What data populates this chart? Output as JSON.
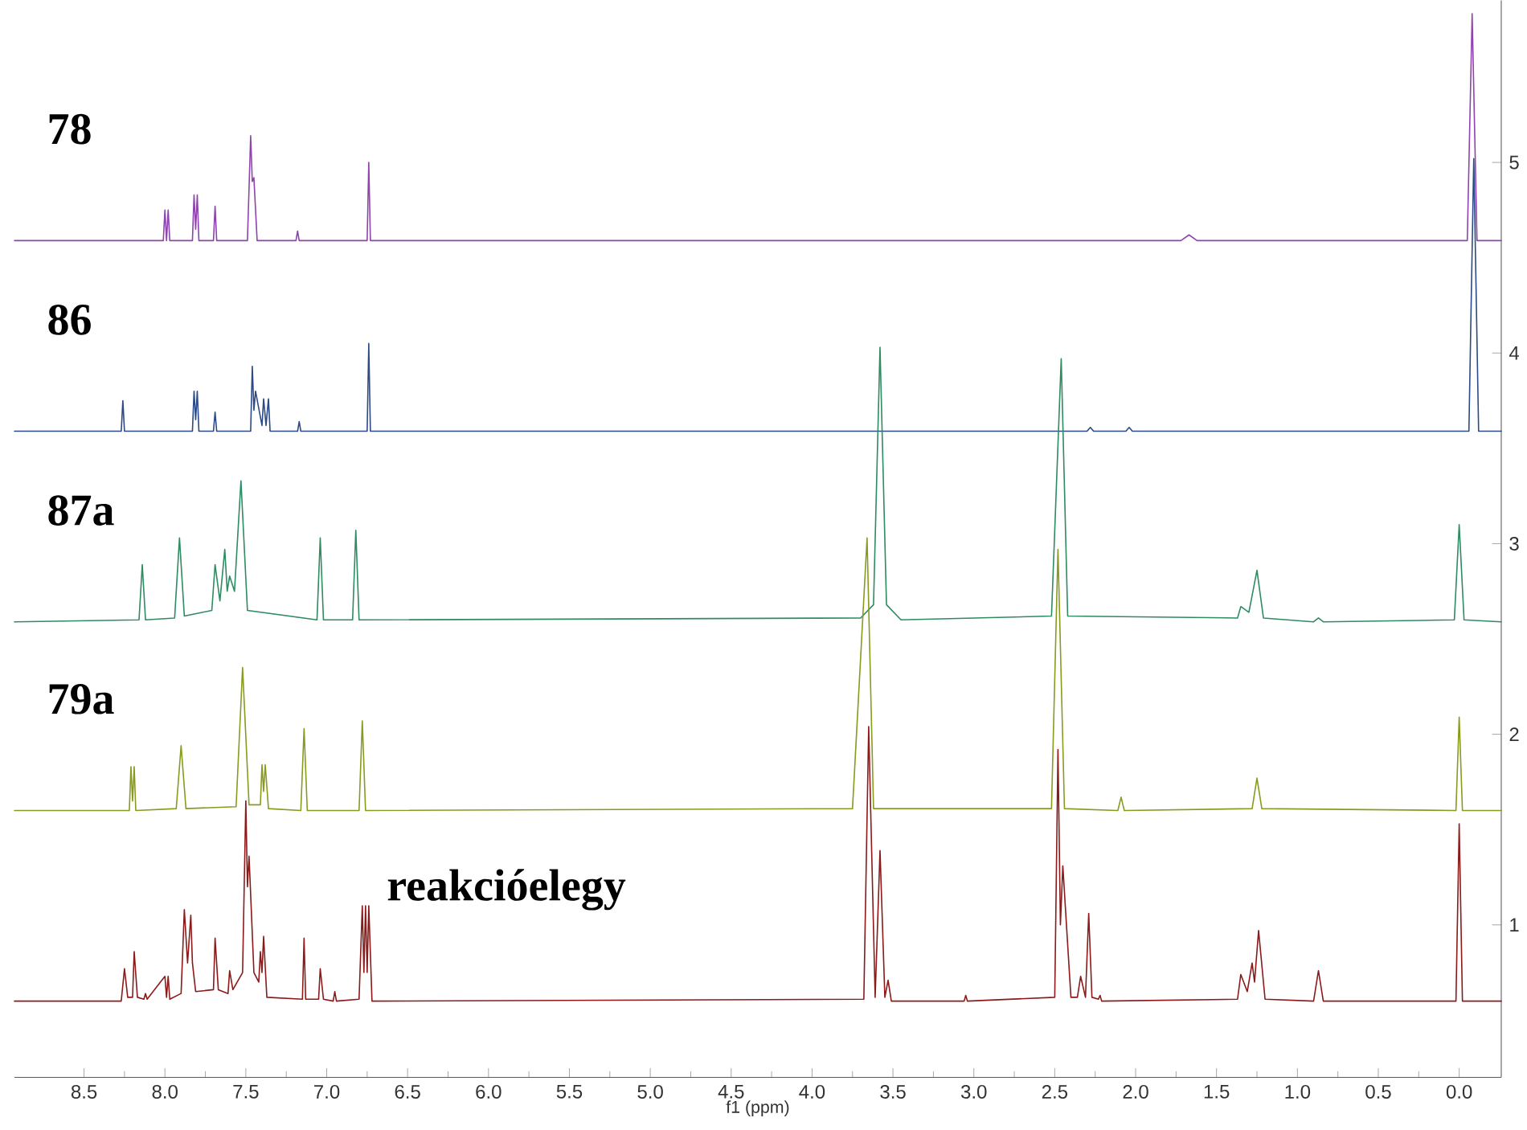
{
  "chart_data": {
    "type": "line",
    "xlabel": "f1 (ppm)",
    "xlim": [
      8.93,
      -0.26
    ],
    "ylim": [
      0.2,
      5.85
    ],
    "xticks": [
      {
        "value": 8.5,
        "label": "8.5"
      },
      {
        "value": 8.0,
        "label": "8.0"
      },
      {
        "value": 7.5,
        "label": "7.5"
      },
      {
        "value": 7.0,
        "label": "7.0"
      },
      {
        "value": 6.5,
        "label": "6.5"
      },
      {
        "value": 6.0,
        "label": "6.0"
      },
      {
        "value": 5.5,
        "label": "5.5"
      },
      {
        "value": 5.0,
        "label": "5.0"
      },
      {
        "value": 4.5,
        "label": "4.5"
      },
      {
        "value": 4.0,
        "label": "4.0"
      },
      {
        "value": 3.5,
        "label": "3.5"
      },
      {
        "value": 3.0,
        "label": "3.0"
      },
      {
        "value": 2.5,
        "label": "2.5"
      },
      {
        "value": 2.0,
        "label": "2.0"
      },
      {
        "value": 1.5,
        "label": "1.5"
      },
      {
        "value": 1.0,
        "label": "1.0"
      },
      {
        "value": 0.5,
        "label": "0.5"
      },
      {
        "value": 0.0,
        "label": "0.0"
      }
    ],
    "yticks": [
      1,
      2,
      3,
      4,
      5
    ],
    "marker": "none",
    "line_style": "solid",
    "series": [
      {
        "name": "78",
        "color": "#8e44ad",
        "x": [
          8.93,
          8.01,
          8.0,
          7.99,
          7.98,
          7.97,
          7.83,
          7.82,
          7.81,
          7.8,
          7.79,
          7.7,
          7.69,
          7.68,
          7.49,
          7.47,
          7.46,
          7.45,
          7.43,
          7.19,
          7.18,
          7.17,
          6.75,
          6.74,
          6.73,
          1.72,
          1.67,
          1.62,
          -0.05,
          -0.08,
          -0.11,
          -0.26
        ],
        "values": [
          4.59,
          4.59,
          4.75,
          4.59,
          4.75,
          4.59,
          4.59,
          4.83,
          4.65,
          4.83,
          4.59,
          4.59,
          4.77,
          4.59,
          4.59,
          5.14,
          4.9,
          4.92,
          4.59,
          4.59,
          4.64,
          4.59,
          4.59,
          5.0,
          4.59,
          4.59,
          4.62,
          4.59,
          4.59,
          5.78,
          4.59,
          4.59
        ]
      },
      {
        "name": "86",
        "color": "#2c4a86",
        "x": [
          8.93,
          8.27,
          8.26,
          8.25,
          7.83,
          7.82,
          7.81,
          7.8,
          7.79,
          7.7,
          7.69,
          7.68,
          7.47,
          7.46,
          7.45,
          7.44,
          7.4,
          7.39,
          7.375,
          7.36,
          7.35,
          7.18,
          7.17,
          7.16,
          6.75,
          6.74,
          6.73,
          2.3,
          2.28,
          2.26,
          2.06,
          2.04,
          2.02,
          -0.06,
          -0.09,
          -0.12,
          -0.26
        ],
        "values": [
          3.59,
          3.59,
          3.75,
          3.59,
          3.59,
          3.8,
          3.65,
          3.8,
          3.59,
          3.59,
          3.69,
          3.59,
          3.59,
          3.93,
          3.7,
          3.8,
          3.62,
          3.76,
          3.62,
          3.76,
          3.59,
          3.59,
          3.64,
          3.59,
          3.59,
          4.05,
          3.59,
          3.59,
          3.61,
          3.59,
          3.59,
          3.61,
          3.59,
          3.59,
          5.02,
          3.59,
          3.59
        ]
      },
      {
        "name": "87a",
        "color": "#2e8b62",
        "x": [
          8.93,
          8.16,
          8.14,
          8.12,
          7.94,
          7.91,
          7.88,
          7.71,
          7.69,
          7.66,
          7.63,
          7.615,
          7.6,
          7.57,
          7.53,
          7.49,
          7.06,
          7.04,
          7.02,
          6.84,
          6.82,
          6.8,
          3.7,
          3.62,
          3.58,
          3.54,
          3.45,
          2.52,
          2.46,
          2.42,
          1.37,
          1.35,
          1.3,
          1.25,
          1.21,
          0.9,
          0.87,
          0.84,
          0.03,
          0.0,
          -0.03,
          -0.26
        ],
        "values": [
          2.59,
          2.6,
          2.89,
          2.6,
          2.61,
          3.03,
          2.62,
          2.65,
          2.89,
          2.7,
          2.97,
          2.75,
          2.83,
          2.75,
          3.33,
          2.65,
          2.6,
          3.03,
          2.6,
          2.6,
          3.07,
          2.6,
          2.61,
          2.68,
          4.03,
          2.68,
          2.6,
          2.62,
          3.97,
          2.62,
          2.61,
          2.67,
          2.64,
          2.86,
          2.61,
          2.59,
          2.61,
          2.59,
          2.6,
          3.1,
          2.6,
          2.59
        ]
      },
      {
        "name": "79a",
        "color": "#8a9a1e",
        "x": [
          8.93,
          8.22,
          8.21,
          8.2,
          8.19,
          8.18,
          7.93,
          7.9,
          7.87,
          7.56,
          7.52,
          7.48,
          7.41,
          7.4,
          7.39,
          7.38,
          7.36,
          7.16,
          7.14,
          7.12,
          6.8,
          6.78,
          6.76,
          3.75,
          3.66,
          3.62,
          2.52,
          2.48,
          2.44,
          2.11,
          2.09,
          2.07,
          1.28,
          1.25,
          1.22,
          0.02,
          0.0,
          -0.02,
          -0.26
        ],
        "values": [
          1.6,
          1.6,
          1.83,
          1.65,
          1.83,
          1.6,
          1.61,
          1.94,
          1.61,
          1.62,
          2.35,
          1.63,
          1.63,
          1.84,
          1.7,
          1.84,
          1.61,
          1.6,
          2.03,
          1.6,
          1.6,
          2.07,
          1.6,
          1.61,
          3.03,
          1.61,
          1.61,
          2.97,
          1.61,
          1.6,
          1.67,
          1.6,
          1.61,
          1.77,
          1.61,
          1.6,
          2.09,
          1.6,
          1.6
        ]
      },
      {
        "name": "reakcióelegy",
        "color": "#8b1a1a",
        "x": [
          8.93,
          8.27,
          8.25,
          8.23,
          8.2,
          8.19,
          8.17,
          8.13,
          8.12,
          8.11,
          8.0,
          7.99,
          7.98,
          7.97,
          7.9,
          7.88,
          7.86,
          7.84,
          7.83,
          7.81,
          7.7,
          7.69,
          7.67,
          7.61,
          7.6,
          7.58,
          7.52,
          7.5,
          7.49,
          7.48,
          7.45,
          7.42,
          7.41,
          7.4,
          7.39,
          7.37,
          7.15,
          7.14,
          7.13,
          7.05,
          7.04,
          7.02,
          6.96,
          6.95,
          6.94,
          6.8,
          6.78,
          6.77,
          6.76,
          6.75,
          6.74,
          6.72,
          3.68,
          3.65,
          3.61,
          3.58,
          3.55,
          3.53,
          3.51,
          3.06,
          3.05,
          3.04,
          2.5,
          2.48,
          2.465,
          2.45,
          2.4,
          2.36,
          2.34,
          2.31,
          2.29,
          2.27,
          2.23,
          2.22,
          2.21,
          1.37,
          1.35,
          1.31,
          1.28,
          1.265,
          1.24,
          1.2,
          0.9,
          0.87,
          0.84,
          0.02,
          0.0,
          -0.02,
          -0.26
        ],
        "values": [
          0.6,
          0.6,
          0.77,
          0.62,
          0.62,
          0.86,
          0.62,
          0.61,
          0.64,
          0.61,
          0.73,
          0.62,
          0.73,
          0.61,
          0.64,
          1.08,
          0.8,
          1.05,
          0.8,
          0.65,
          0.66,
          0.93,
          0.66,
          0.64,
          0.76,
          0.66,
          0.75,
          1.65,
          1.2,
          1.36,
          0.75,
          0.7,
          0.86,
          0.75,
          0.94,
          0.62,
          0.61,
          0.93,
          0.61,
          0.61,
          0.77,
          0.61,
          0.6,
          0.65,
          0.6,
          0.61,
          1.1,
          0.75,
          1.1,
          0.75,
          1.1,
          0.6,
          0.61,
          2.04,
          0.62,
          1.39,
          0.62,
          0.71,
          0.6,
          0.6,
          0.63,
          0.6,
          0.62,
          1.92,
          1.0,
          1.31,
          0.62,
          0.62,
          0.73,
          0.62,
          1.06,
          0.62,
          0.61,
          0.63,
          0.6,
          0.61,
          0.74,
          0.65,
          0.8,
          0.7,
          0.97,
          0.61,
          0.6,
          0.76,
          0.6,
          0.6,
          1.53,
          0.6,
          0.6
        ]
      }
    ]
  }
}
